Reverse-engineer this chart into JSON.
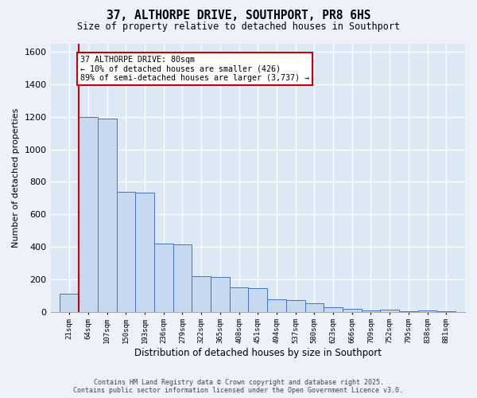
{
  "title": "37, ALTHORPE DRIVE, SOUTHPORT, PR8 6HS",
  "subtitle": "Size of property relative to detached houses in Southport",
  "xlabel": "Distribution of detached houses by size in Southport",
  "ylabel": "Number of detached properties",
  "categories": [
    "21sqm",
    "64sqm",
    "107sqm",
    "150sqm",
    "193sqm",
    "236sqm",
    "279sqm",
    "322sqm",
    "365sqm",
    "408sqm",
    "451sqm",
    "494sqm",
    "537sqm",
    "580sqm",
    "623sqm",
    "666sqm",
    "709sqm",
    "752sqm",
    "795sqm",
    "838sqm",
    "881sqm"
  ],
  "bin_lefts": [
    21,
    64,
    107,
    150,
    193,
    236,
    279,
    322,
    365,
    408,
    451,
    494,
    537,
    580,
    623,
    666,
    709,
    752,
    795,
    838,
    881
  ],
  "bin_width": 43,
  "bar_heights": [
    110,
    1200,
    1190,
    740,
    735,
    420,
    415,
    220,
    215,
    150,
    145,
    75,
    72,
    50,
    28,
    18,
    10,
    13,
    5,
    10,
    5
  ],
  "bar_color": "#c6d9f1",
  "bar_edge_color": "#4472c4",
  "plot_bg_color": "#dde8f5",
  "fig_bg_color": "#edf2fa",
  "grid_color": "#ffffff",
  "red_line_x": 64,
  "annotation_text": "37 ALTHORPE DRIVE: 80sqm\n← 10% of detached houses are smaller (426)\n89% of semi-detached houses are larger (3,737) →",
  "annotation_box_facecolor": "#ffffff",
  "annotation_box_edgecolor": "#cc0000",
  "ylim": [
    0,
    1650
  ],
  "yticks": [
    0,
    200,
    400,
    600,
    800,
    1000,
    1200,
    1400,
    1600
  ],
  "footer_line1": "Contains HM Land Registry data © Crown copyright and database right 2025.",
  "footer_line2": "Contains public sector information licensed under the Open Government Licence v3.0."
}
